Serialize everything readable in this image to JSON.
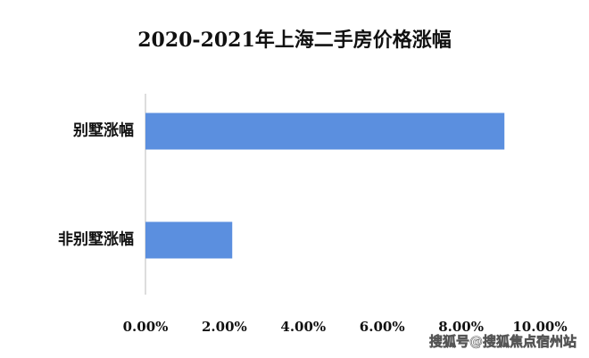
{
  "chart_data": {
    "type": "bar",
    "orientation": "horizontal",
    "title": "2020-2021年上海二手房价格涨幅",
    "categories": [
      "别墅涨幅",
      "非别墅涨幅"
    ],
    "values": [
      9.1,
      2.2
    ],
    "color": "#5b8fdf",
    "xlim": [
      0,
      10
    ],
    "xticks": [
      {
        "value": 0,
        "label": "0.00%"
      },
      {
        "value": 2,
        "label": "2.00%"
      },
      {
        "value": 4,
        "label": "4.00%"
      },
      {
        "value": 6,
        "label": "6.00%"
      },
      {
        "value": 8,
        "label": "8.00%"
      },
      {
        "value": 10,
        "label": "10.00%"
      }
    ],
    "watermark": "搜狐号@搜狐焦点宿州站"
  }
}
